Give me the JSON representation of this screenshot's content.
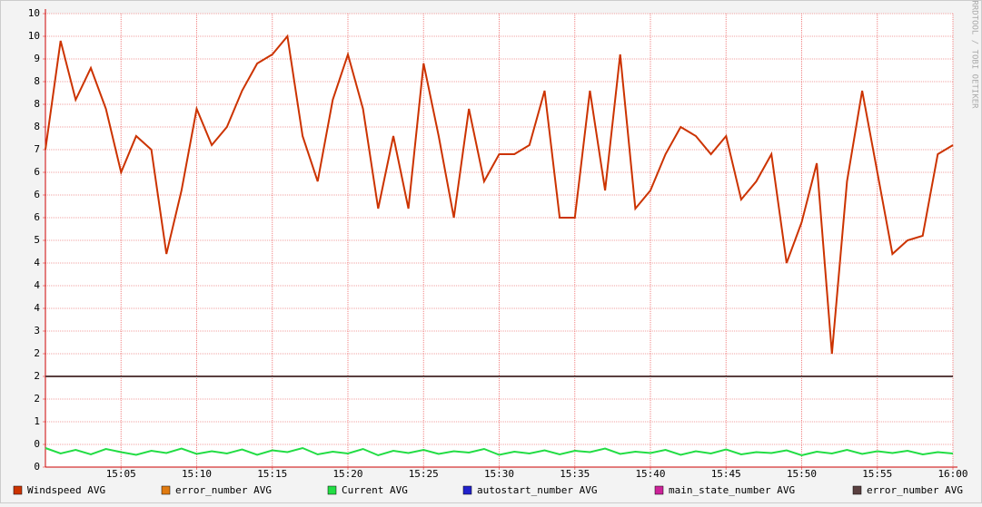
{
  "chart_data": {
    "type": "line",
    "watermark": "RRDTOOL / TOBI OETIKER",
    "x": [
      0,
      1,
      2,
      3,
      4,
      5,
      6,
      7,
      8,
      9,
      10,
      11,
      12,
      13,
      14,
      15,
      16,
      17,
      18,
      19,
      20,
      21,
      22,
      23,
      24,
      25,
      26,
      27,
      28,
      29,
      30,
      31,
      32,
      33,
      34,
      35,
      36,
      37,
      38,
      39,
      40,
      41,
      42,
      43,
      44,
      45,
      46,
      47,
      48,
      49,
      50,
      51,
      52,
      53,
      54,
      55,
      56,
      57,
      58,
      59,
      60
    ],
    "xlim": [
      0,
      60
    ],
    "xticks": [
      {
        "value": 5,
        "label": "15:05"
      },
      {
        "value": 10,
        "label": "15:10"
      },
      {
        "value": 15,
        "label": "15:15"
      },
      {
        "value": 20,
        "label": "15:20"
      },
      {
        "value": 25,
        "label": "15:25"
      },
      {
        "value": 30,
        "label": "15:30"
      },
      {
        "value": 35,
        "label": "15:35"
      },
      {
        "value": 40,
        "label": "15:40"
      },
      {
        "value": 45,
        "label": "15:45"
      },
      {
        "value": 50,
        "label": "15:50"
      },
      {
        "value": 55,
        "label": "15:55"
      },
      {
        "value": 60,
        "label": "16:00"
      }
    ],
    "ylim": [
      0,
      10
    ],
    "yticks": [
      {
        "value": 0,
        "label": "0"
      },
      {
        "value": 0.5,
        "label": "0"
      },
      {
        "value": 1,
        "label": "1"
      },
      {
        "value": 1.5,
        "label": "2"
      },
      {
        "value": 2,
        "label": "2"
      },
      {
        "value": 2.5,
        "label": "2"
      },
      {
        "value": 3,
        "label": "3"
      },
      {
        "value": 3.5,
        "label": "4"
      },
      {
        "value": 4,
        "label": "4"
      },
      {
        "value": 4.5,
        "label": "4"
      },
      {
        "value": 5,
        "label": "5"
      },
      {
        "value": 5.5,
        "label": "6"
      },
      {
        "value": 6,
        "label": "6"
      },
      {
        "value": 6.5,
        "label": "6"
      },
      {
        "value": 7,
        "label": "7"
      },
      {
        "value": 7.5,
        "label": "8"
      },
      {
        "value": 8,
        "label": "8"
      },
      {
        "value": 8.5,
        "label": "8"
      },
      {
        "value": 9,
        "label": "9"
      },
      {
        "value": 9.5,
        "label": "10"
      },
      {
        "value": 10,
        "label": "10"
      }
    ],
    "grid": true,
    "series": [
      {
        "name": "Windspeed AVG",
        "color": "#cc3300",
        "values": [
          7.0,
          9.4,
          8.1,
          8.8,
          7.9,
          6.5,
          7.3,
          7.0,
          4.7,
          6.1,
          7.9,
          7.1,
          7.5,
          8.3,
          8.9,
          9.1,
          9.5,
          7.3,
          6.3,
          8.1,
          9.1,
          7.9,
          5.7,
          7.3,
          5.7,
          8.9,
          7.3,
          5.5,
          7.9,
          6.3,
          6.9,
          6.9,
          7.1,
          8.3,
          5.5,
          5.5,
          8.3,
          6.1,
          9.1,
          5.7,
          6.1,
          6.9,
          7.5,
          7.3,
          6.9,
          7.3,
          5.9,
          6.3,
          6.9,
          4.5,
          5.4,
          6.7,
          2.5,
          6.3,
          8.3,
          6.5,
          4.7,
          5.0,
          5.1,
          6.9,
          7.1
        ]
      },
      {
        "name": "error_number AVG",
        "color": "#e07a10",
        "values": [
          null,
          null,
          null,
          null,
          null,
          null,
          null,
          null,
          null,
          null,
          null,
          null,
          null,
          null,
          null,
          null,
          null,
          null,
          null,
          null,
          null,
          null,
          null,
          null,
          null,
          null,
          null,
          null,
          null,
          null,
          null,
          null,
          null,
          null,
          null,
          null,
          null,
          null,
          null,
          null,
          null,
          null,
          null,
          null,
          null,
          null,
          null,
          null,
          null,
          null,
          null,
          null,
          null,
          null,
          null,
          null,
          null,
          null,
          null,
          null,
          null
        ]
      },
      {
        "name": "Current AVG",
        "color": "#22dd44",
        "values": [
          0.42,
          0.3,
          0.38,
          0.28,
          0.4,
          0.33,
          0.27,
          0.36,
          0.31,
          0.41,
          0.29,
          0.35,
          0.3,
          0.39,
          0.27,
          0.37,
          0.33,
          0.42,
          0.28,
          0.34,
          0.3,
          0.4,
          0.26,
          0.36,
          0.31,
          0.38,
          0.29,
          0.35,
          0.32,
          0.4,
          0.27,
          0.34,
          0.3,
          0.37,
          0.28,
          0.36,
          0.33,
          0.41,
          0.29,
          0.34,
          0.31,
          0.38,
          0.27,
          0.35,
          0.3,
          0.39,
          0.28,
          0.33,
          0.31,
          0.37,
          0.26,
          0.34,
          0.3,
          0.38,
          0.29,
          0.35,
          0.31,
          0.36,
          0.28,
          0.33,
          0.3
        ]
      },
      {
        "name": "autostart_number AVG",
        "color": "#2222cc",
        "values": [
          null,
          null,
          null,
          null,
          null,
          null,
          null,
          null,
          null,
          null,
          null,
          null,
          null,
          null,
          null,
          null,
          null,
          null,
          null,
          null,
          null,
          null,
          null,
          null,
          null,
          null,
          null,
          null,
          null,
          null,
          null,
          null,
          null,
          null,
          null,
          null,
          null,
          null,
          null,
          null,
          null,
          null,
          null,
          null,
          null,
          null,
          null,
          null,
          null,
          null,
          null,
          null,
          null,
          null,
          null,
          null,
          null,
          null,
          null,
          null,
          null
        ]
      },
      {
        "name": "main_state_number AVG",
        "color": "#cc2299",
        "values": [
          null,
          null,
          null,
          null,
          null,
          null,
          null,
          null,
          null,
          null,
          null,
          null,
          null,
          null,
          null,
          null,
          null,
          null,
          null,
          null,
          null,
          null,
          null,
          null,
          null,
          null,
          null,
          null,
          null,
          null,
          null,
          null,
          null,
          null,
          null,
          null,
          null,
          null,
          null,
          null,
          null,
          null,
          null,
          null,
          null,
          null,
          null,
          null,
          null,
          null,
          null,
          null,
          null,
          null,
          null,
          null,
          null,
          null,
          null,
          null,
          null
        ]
      },
      {
        "name": "error_number AVG",
        "color": "#5a4040",
        "values": [
          2,
          2,
          2,
          2,
          2,
          2,
          2,
          2,
          2,
          2,
          2,
          2,
          2,
          2,
          2,
          2,
          2,
          2,
          2,
          2,
          2,
          2,
          2,
          2,
          2,
          2,
          2,
          2,
          2,
          2,
          2,
          2,
          2,
          2,
          2,
          2,
          2,
          2,
          2,
          2,
          2,
          2,
          2,
          2,
          2,
          2,
          2,
          2,
          2,
          2,
          2,
          2,
          2,
          2,
          2,
          2,
          2,
          2,
          2,
          2,
          2
        ]
      }
    ]
  }
}
